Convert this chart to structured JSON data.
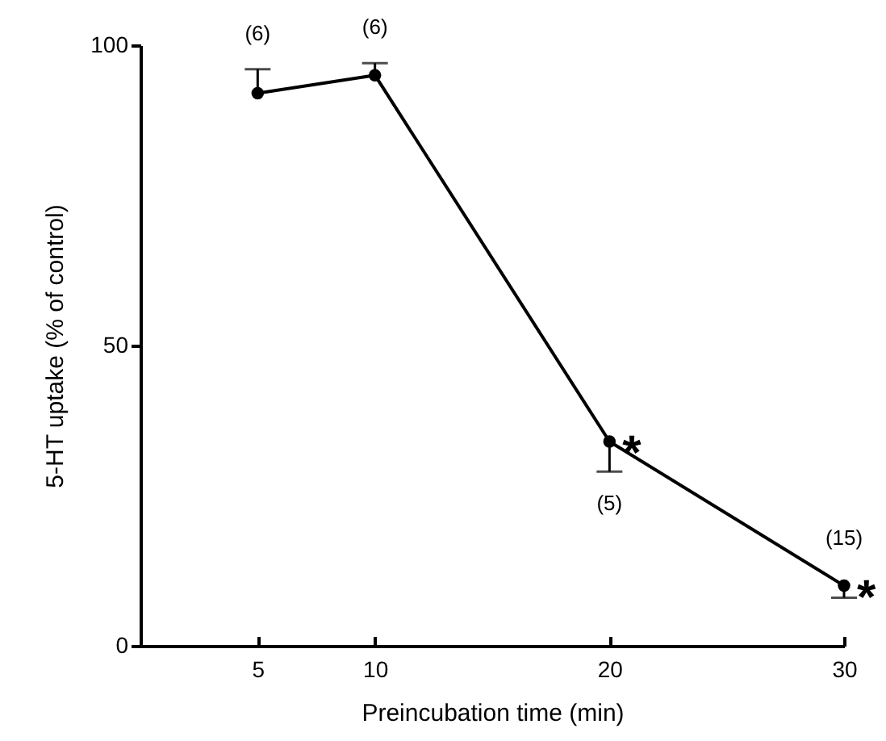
{
  "chart_data": {
    "type": "line",
    "xlabel": "Preincubation time (min)",
    "ylabel": "5-HT uptake (% of control)",
    "x": [
      5,
      10,
      20,
      30
    ],
    "series": [
      {
        "color": "#000000",
        "values": [
          92,
          95,
          34,
          10
        ],
        "errors": [
          [
            92,
            96
          ],
          [
            95,
            97
          ],
          [
            29,
            34
          ],
          [
            8,
            10
          ]
        ]
      }
    ],
    "xlim": [
      0,
      30
    ],
    "xticks": [
      5,
      10,
      20,
      30
    ],
    "ylim": [
      0,
      100
    ],
    "yticks": [
      0,
      50,
      100
    ],
    "marker": "circle",
    "line_style": "solid",
    "grid": false,
    "annotations": [
      {
        "text": "(6)",
        "x": 5,
        "y": 96
      },
      {
        "text": "(6)",
        "x": 10,
        "y": 97
      },
      {
        "text": "(5)",
        "x": 20,
        "y": 29
      },
      {
        "text": "*",
        "x": 20,
        "y": 34
      },
      {
        "text": "(15)",
        "x": 30,
        "y": 12
      },
      {
        "text": "*",
        "x": 30,
        "y": 10
      }
    ]
  }
}
